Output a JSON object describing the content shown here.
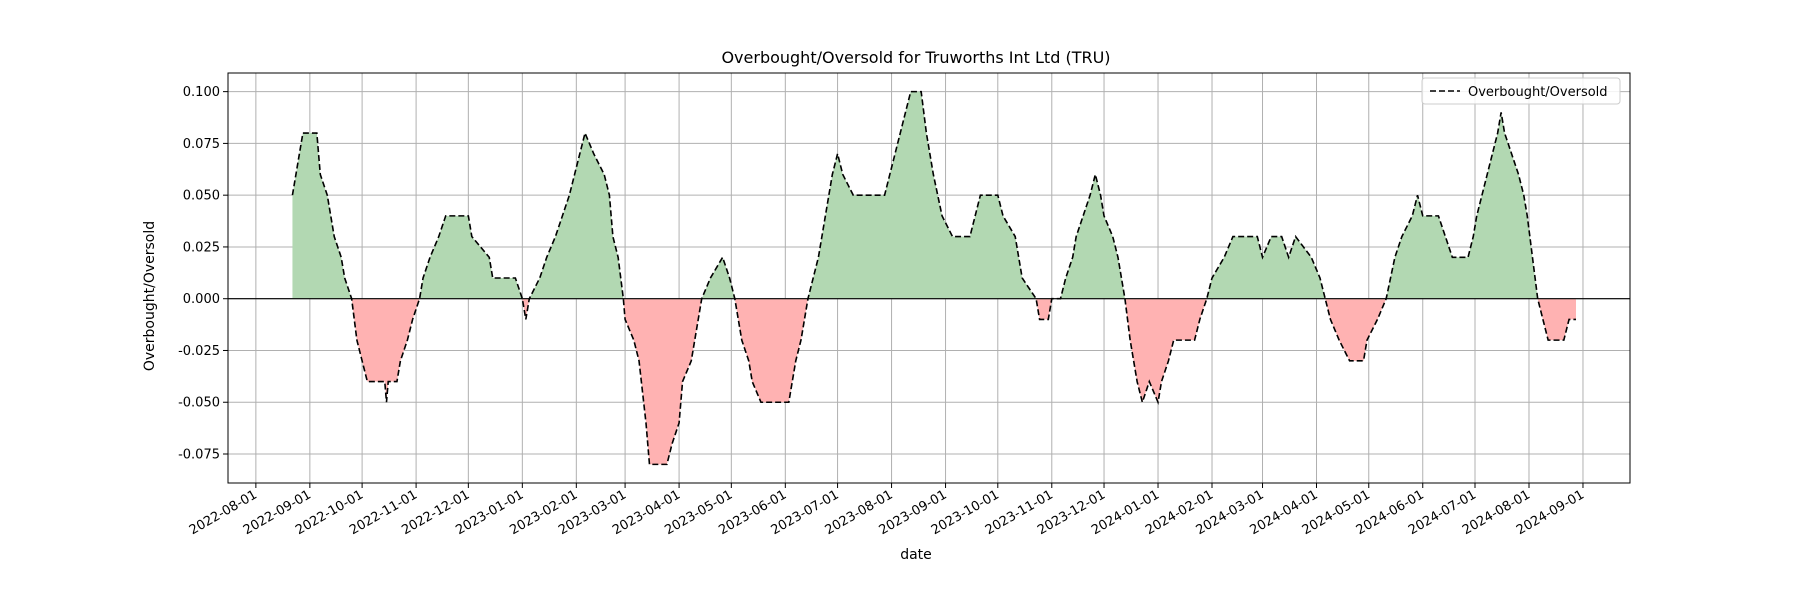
{
  "chart_data": {
    "type": "area",
    "title": "Overbought/Oversold for Truworths Int Ltd (TRU)",
    "xlabel": "date",
    "ylabel": "Overbought/Oversold",
    "x_range": [
      "2022-07-16",
      "2024-09-28"
    ],
    "ylim": [
      -0.089,
      0.109
    ],
    "grid": true,
    "legend": {
      "position": "top-right",
      "entries": [
        "Overbought/Oversold"
      ]
    },
    "colors": {
      "positive_fill": "#b2d8b2",
      "negative_fill": "#ffb2b2",
      "line": "#000000",
      "zero_line": "#000000"
    },
    "y_ticks": [
      "0.100",
      "0.075",
      "0.050",
      "0.025",
      "0.000",
      "-0.025",
      "-0.050",
      "-0.075"
    ],
    "y_tick_values": [
      0.1,
      0.075,
      0.05,
      0.025,
      0.0,
      -0.025,
      -0.05,
      -0.075
    ],
    "x_ticks": [
      "2022-08-01",
      "2022-09-01",
      "2022-10-01",
      "2022-11-01",
      "2022-12-01",
      "2023-01-01",
      "2023-02-01",
      "2023-03-01",
      "2023-04-01",
      "2023-05-01",
      "2023-06-01",
      "2023-07-01",
      "2023-08-01",
      "2023-09-01",
      "2023-10-01",
      "2023-11-01",
      "2023-12-01",
      "2024-01-01",
      "2024-02-01",
      "2024-03-01",
      "2024-04-01",
      "2024-05-01",
      "2024-06-01",
      "2024-07-01",
      "2024-08-01",
      "2024-09-01"
    ],
    "series": [
      {
        "name": "Overbought/Oversold",
        "style": "dashed",
        "points": [
          [
            "2022-08-22",
            0.05
          ],
          [
            "2022-08-24",
            0.06
          ],
          [
            "2022-08-26",
            0.07
          ],
          [
            "2022-08-28",
            0.08
          ],
          [
            "2022-09-05",
            0.08
          ],
          [
            "2022-09-07",
            0.06
          ],
          [
            "2022-09-11",
            0.05
          ],
          [
            "2022-09-13",
            0.04
          ],
          [
            "2022-09-15",
            0.03
          ],
          [
            "2022-09-19",
            0.02
          ],
          [
            "2022-09-21",
            0.01
          ],
          [
            "2022-09-25",
            0.0
          ],
          [
            "2022-09-28",
            -0.02
          ],
          [
            "2022-10-01",
            -0.03
          ],
          [
            "2022-10-04",
            -0.04
          ],
          [
            "2022-10-14",
            -0.04
          ],
          [
            "2022-10-15",
            -0.05
          ],
          [
            "2022-10-16",
            -0.04
          ],
          [
            "2022-10-21",
            -0.04
          ],
          [
            "2022-10-23",
            -0.03
          ],
          [
            "2022-10-27",
            -0.02
          ],
          [
            "2022-10-30",
            -0.01
          ],
          [
            "2022-11-03",
            0.0
          ],
          [
            "2022-11-05",
            0.01
          ],
          [
            "2022-11-09",
            0.02
          ],
          [
            "2022-11-14",
            0.03
          ],
          [
            "2022-11-18",
            0.04
          ],
          [
            "2022-12-01",
            0.04
          ],
          [
            "2022-12-03",
            0.03
          ],
          [
            "2022-12-13",
            0.02
          ],
          [
            "2022-12-15",
            0.01
          ],
          [
            "2022-12-28",
            0.01
          ],
          [
            "2023-01-01",
            0.0
          ],
          [
            "2023-01-03",
            -0.01
          ],
          [
            "2023-01-05",
            0.0
          ],
          [
            "2023-01-11",
            0.01
          ],
          [
            "2023-01-15",
            0.02
          ],
          [
            "2023-01-20",
            0.03
          ],
          [
            "2023-01-24",
            0.04
          ],
          [
            "2023-01-28",
            0.05
          ],
          [
            "2023-01-31",
            0.06
          ],
          [
            "2023-02-03",
            0.07
          ],
          [
            "2023-02-06",
            0.08
          ],
          [
            "2023-02-11",
            0.07
          ],
          [
            "2023-02-17",
            0.06
          ],
          [
            "2023-02-20",
            0.05
          ],
          [
            "2023-02-22",
            0.03
          ],
          [
            "2023-02-25",
            0.02
          ],
          [
            "2023-02-28",
            0.0
          ],
          [
            "2023-03-01",
            -0.01
          ],
          [
            "2023-03-06",
            -0.02
          ],
          [
            "2023-03-09",
            -0.03
          ],
          [
            "2023-03-13",
            -0.06
          ],
          [
            "2023-03-15",
            -0.08
          ],
          [
            "2023-03-25",
            -0.08
          ],
          [
            "2023-03-28",
            -0.07
          ],
          [
            "2023-04-01",
            -0.06
          ],
          [
            "2023-04-03",
            -0.04
          ],
          [
            "2023-04-08",
            -0.03
          ],
          [
            "2023-04-12",
            -0.01
          ],
          [
            "2023-04-14",
            0.0
          ],
          [
            "2023-04-19",
            0.01
          ],
          [
            "2023-04-26",
            0.02
          ],
          [
            "2023-04-30",
            0.01
          ],
          [
            "2023-05-03",
            0.0
          ],
          [
            "2023-05-07",
            -0.02
          ],
          [
            "2023-05-11",
            -0.03
          ],
          [
            "2023-05-13",
            -0.04
          ],
          [
            "2023-05-18",
            -0.05
          ],
          [
            "2023-06-03",
            -0.05
          ],
          [
            "2023-06-07",
            -0.03
          ],
          [
            "2023-06-10",
            -0.02
          ],
          [
            "2023-06-14",
            0.0
          ],
          [
            "2023-06-17",
            0.01
          ],
          [
            "2023-06-20",
            0.02
          ],
          [
            "2023-06-24",
            0.04
          ],
          [
            "2023-06-26",
            0.05
          ],
          [
            "2023-06-28",
            0.06
          ],
          [
            "2023-07-01",
            0.07
          ],
          [
            "2023-07-04",
            0.06
          ],
          [
            "2023-07-07",
            0.055
          ],
          [
            "2023-07-10",
            0.05
          ],
          [
            "2023-07-28",
            0.05
          ],
          [
            "2023-07-31",
            0.06
          ],
          [
            "2023-08-03",
            0.07
          ],
          [
            "2023-08-06",
            0.08
          ],
          [
            "2023-08-09",
            0.09
          ],
          [
            "2023-08-12",
            0.1
          ],
          [
            "2023-08-18",
            0.1
          ],
          [
            "2023-08-21",
            0.08
          ],
          [
            "2023-08-25",
            0.06
          ],
          [
            "2023-08-30",
            0.04
          ],
          [
            "2023-09-05",
            0.03
          ],
          [
            "2023-09-15",
            0.03
          ],
          [
            "2023-09-18",
            0.04
          ],
          [
            "2023-09-21",
            0.05
          ],
          [
            "2023-10-01",
            0.05
          ],
          [
            "2023-10-04",
            0.04
          ],
          [
            "2023-10-11",
            0.03
          ],
          [
            "2023-10-15",
            0.01
          ],
          [
            "2023-10-23",
            0.0
          ],
          [
            "2023-10-25",
            -0.01
          ],
          [
            "2023-10-30",
            -0.01
          ],
          [
            "2023-11-01",
            0.0
          ],
          [
            "2023-11-06",
            0.0
          ],
          [
            "2023-11-09",
            0.01
          ],
          [
            "2023-11-13",
            0.02
          ],
          [
            "2023-11-15",
            0.03
          ],
          [
            "2023-11-19",
            0.04
          ],
          [
            "2023-11-23",
            0.05
          ],
          [
            "2023-11-26",
            0.06
          ],
          [
            "2023-11-29",
            0.05
          ],
          [
            "2023-12-01",
            0.04
          ],
          [
            "2023-12-06",
            0.03
          ],
          [
            "2023-12-09",
            0.02
          ],
          [
            "2023-12-13",
            0.0
          ],
          [
            "2023-12-16",
            -0.02
          ],
          [
            "2023-12-20",
            -0.04
          ],
          [
            "2023-12-23",
            -0.05
          ],
          [
            "2023-12-27",
            -0.04
          ],
          [
            "2024-01-01",
            -0.05
          ],
          [
            "2024-01-03",
            -0.04
          ],
          [
            "2024-01-07",
            -0.03
          ],
          [
            "2024-01-10",
            -0.02
          ],
          [
            "2024-01-22",
            -0.02
          ],
          [
            "2024-01-25",
            -0.01
          ],
          [
            "2024-01-29",
            0.0
          ],
          [
            "2024-02-01",
            0.01
          ],
          [
            "2024-02-08",
            0.02
          ],
          [
            "2024-02-13",
            0.03
          ],
          [
            "2024-02-27",
            0.03
          ],
          [
            "2024-03-01",
            0.02
          ],
          [
            "2024-03-06",
            0.03
          ],
          [
            "2024-03-12",
            0.03
          ],
          [
            "2024-03-16",
            0.02
          ],
          [
            "2024-03-20",
            0.03
          ],
          [
            "2024-03-29",
            0.02
          ],
          [
            "2024-04-03",
            0.01
          ],
          [
            "2024-04-06",
            0.0
          ],
          [
            "2024-04-09",
            -0.01
          ],
          [
            "2024-04-14",
            -0.02
          ],
          [
            "2024-04-20",
            -0.03
          ],
          [
            "2024-04-28",
            -0.03
          ],
          [
            "2024-04-30",
            -0.02
          ],
          [
            "2024-05-06",
            -0.01
          ],
          [
            "2024-05-11",
            0.0
          ],
          [
            "2024-05-16",
            0.02
          ],
          [
            "2024-05-20",
            0.03
          ],
          [
            "2024-05-26",
            0.04
          ],
          [
            "2024-05-29",
            0.05
          ],
          [
            "2024-06-01",
            0.04
          ],
          [
            "2024-06-10",
            0.04
          ],
          [
            "2024-06-14",
            0.03
          ],
          [
            "2024-06-18",
            0.02
          ],
          [
            "2024-06-27",
            0.02
          ],
          [
            "2024-06-30",
            0.03
          ],
          [
            "2024-07-02",
            0.04
          ],
          [
            "2024-07-05",
            0.05
          ],
          [
            "2024-07-08",
            0.06
          ],
          [
            "2024-07-11",
            0.07
          ],
          [
            "2024-07-14",
            0.08
          ],
          [
            "2024-07-16",
            0.09
          ],
          [
            "2024-07-18",
            0.08
          ],
          [
            "2024-07-22",
            0.07
          ],
          [
            "2024-07-26",
            0.06
          ],
          [
            "2024-07-29",
            0.05
          ],
          [
            "2024-07-31",
            0.04
          ],
          [
            "2024-08-03",
            0.02
          ],
          [
            "2024-08-06",
            0.0
          ],
          [
            "2024-08-09",
            -0.01
          ],
          [
            "2024-08-12",
            -0.02
          ],
          [
            "2024-08-21",
            -0.02
          ],
          [
            "2024-08-24",
            -0.01
          ],
          [
            "2024-08-28",
            -0.01
          ]
        ]
      }
    ]
  }
}
